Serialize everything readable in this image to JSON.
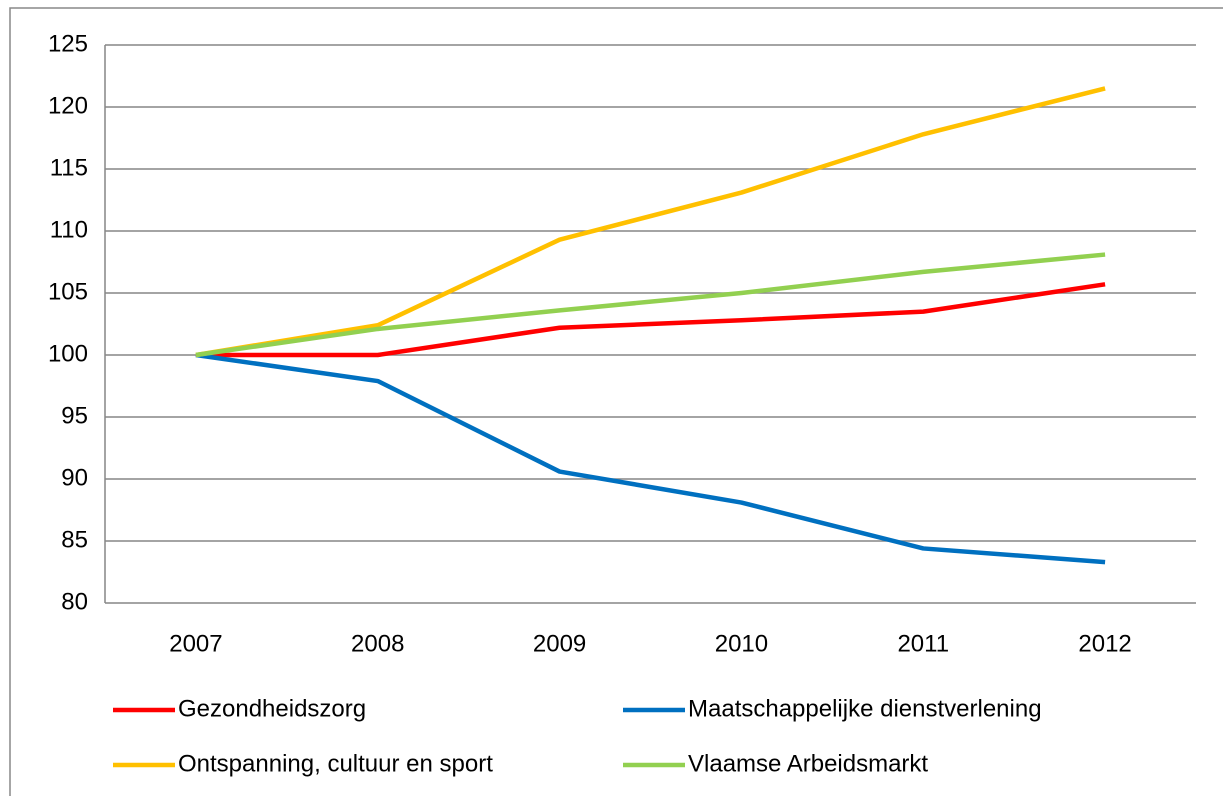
{
  "chart_data": {
    "type": "line",
    "categories": [
      "2007",
      "2008",
      "2009",
      "2010",
      "2011",
      "2012"
    ],
    "series": [
      {
        "name": "Gezondheidszorg",
        "color": "#ff0000",
        "values": [
          100,
          100,
          102.2,
          102.8,
          103.5,
          105.7
        ]
      },
      {
        "name": "Maatschappelijke dienstverlening",
        "color": "#0070c0",
        "values": [
          100,
          97.9,
          90.6,
          88.1,
          84.4,
          83.3
        ]
      },
      {
        "name": "Ontspanning, cultuur en sport",
        "color": "#ffc000",
        "values": [
          100,
          102.4,
          109.3,
          113.1,
          117.8,
          121.5
        ]
      },
      {
        "name": "Vlaamse Arbeidsmarkt",
        "color": "#92d050",
        "values": [
          100,
          102.1,
          103.6,
          105.0,
          106.7,
          108.1
        ]
      }
    ],
    "ylim": [
      80,
      125
    ],
    "yticks": [
      80,
      85,
      90,
      95,
      100,
      105,
      110,
      115,
      120,
      125
    ],
    "grid": true,
    "legend": "bottom"
  }
}
